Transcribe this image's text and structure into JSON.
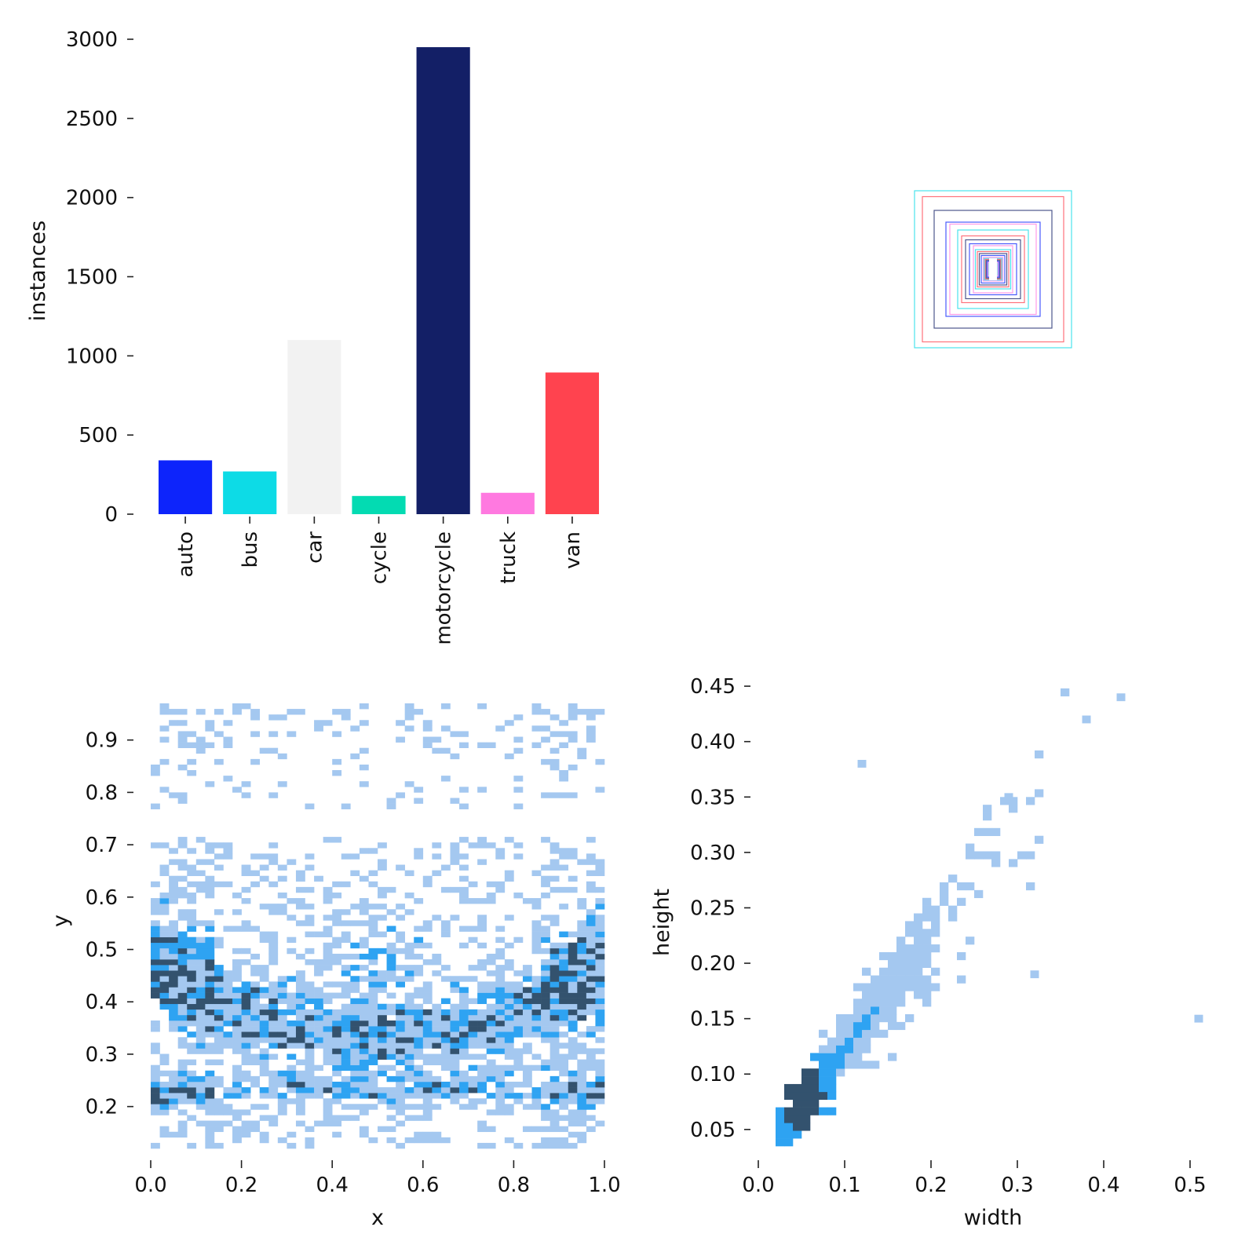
{
  "chart_data": [
    {
      "type": "bar",
      "title": "",
      "xlabel": "",
      "ylabel": "instances",
      "ylim": [
        0,
        3000
      ],
      "yticks": [
        "0",
        "500",
        "1000",
        "1500",
        "2000",
        "2500",
        "3000"
      ],
      "categories": [
        "auto",
        "bus",
        "car",
        "cycle",
        "motorcycle",
        "truck",
        "van"
      ],
      "values": [
        340,
        270,
        1100,
        115,
        2950,
        135,
        895
      ],
      "colors": [
        "#0d24fb",
        "#0ddbe6",
        "#f2f2f2",
        "#03dbb2",
        "#131f66",
        "#ff79e0",
        "#ff434f"
      ]
    },
    {
      "type": "box-overlay",
      "description_note": "",
      "boxes_wh": [
        [
          0.4,
          0.4
        ],
        [
          0.36,
          0.37
        ],
        [
          0.3,
          0.3
        ],
        [
          0.24,
          0.24
        ],
        [
          0.22,
          0.23
        ],
        [
          0.18,
          0.2
        ],
        [
          0.16,
          0.17
        ],
        [
          0.14,
          0.15
        ],
        [
          0.12,
          0.13
        ],
        [
          0.1,
          0.12
        ],
        [
          0.09,
          0.1
        ],
        [
          0.08,
          0.09
        ],
        [
          0.07,
          0.08
        ],
        [
          0.06,
          0.07
        ],
        [
          0.05,
          0.06
        ],
        [
          0.045,
          0.055
        ],
        [
          0.04,
          0.05
        ],
        [
          0.035,
          0.045
        ],
        [
          0.03,
          0.04
        ],
        [
          0.025,
          0.035
        ],
        [
          0.02,
          0.03
        ],
        [
          0.015,
          0.025
        ]
      ],
      "box_colors": [
        "#0ddbe6",
        "#ff434f",
        "#131f66",
        "#0d24fb",
        "#ff79e0"
      ]
    },
    {
      "type": "heatmap",
      "xlabel": "x",
      "ylabel": "y",
      "xlim": [
        0.0,
        1.0
      ],
      "ylim": [
        0.12,
        0.97
      ],
      "xticks": [
        "0.0",
        "0.2",
        "0.4",
        "0.6",
        "0.8",
        "1.0"
      ],
      "yticks": [
        "0.2",
        "0.3",
        "0.4",
        "0.5",
        "0.6",
        "0.7",
        "0.8",
        "0.9"
      ],
      "colors": {
        "low": "#a4c8f0",
        "mid": "#2ea3f2",
        "high": "#33526e"
      }
    },
    {
      "type": "heatmap",
      "xlabel": "width",
      "ylabel": "height",
      "xlim": [
        0.0,
        0.52
      ],
      "ylim": [
        0.035,
        0.46
      ],
      "xticks": [
        "0.0",
        "0.1",
        "0.2",
        "0.3",
        "0.4",
        "0.5"
      ],
      "yticks": [
        "0.05",
        "0.10",
        "0.15",
        "0.20",
        "0.25",
        "0.30",
        "0.35",
        "0.40",
        "0.45"
      ],
      "outliers": [
        [
          0.42,
          0.44
        ],
        [
          0.38,
          0.42
        ],
        [
          0.12,
          0.38
        ],
        [
          0.29,
          0.35
        ],
        [
          0.51,
          0.15
        ],
        [
          0.32,
          0.19
        ]
      ],
      "colors": {
        "low": "#a4c8f0",
        "mid": "#2ea3f2",
        "high": "#33526e"
      }
    }
  ]
}
